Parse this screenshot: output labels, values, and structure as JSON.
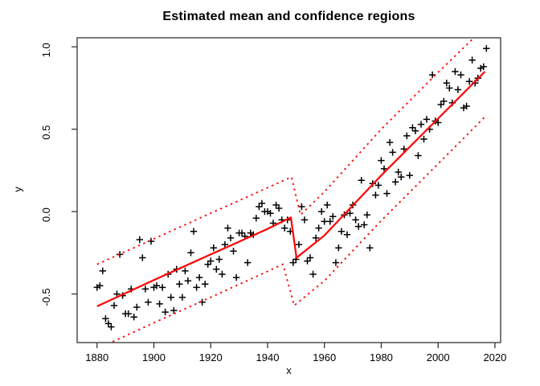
{
  "chart_data": {
    "type": "scatter",
    "title": "Estimated mean and confidence regions",
    "xlabel": "x",
    "ylabel": "y",
    "xlim": [
      1873,
      2022
    ],
    "ylim": [
      -0.795,
      1.055
    ],
    "x_ticks": [
      1880,
      1900,
      1920,
      1940,
      1960,
      1980,
      2000,
      2020
    ],
    "y_ticks": [
      -0.5,
      0.0,
      0.5,
      1.0
    ],
    "y_tick_labels": [
      "-0.5",
      "0.0",
      "0.5",
      "1.0"
    ],
    "grid": false,
    "legend": "none",
    "marker": "plus",
    "colors": {
      "points": "#000000",
      "mean_line": "#ff0000",
      "band": "#ff0000",
      "axis": "#333333"
    },
    "series": [
      {
        "name": "observations",
        "style": "plus-marker",
        "points": [
          [
            1880,
            -0.46
          ],
          [
            1881,
            -0.45
          ],
          [
            1882,
            -0.36
          ],
          [
            1883,
            -0.65
          ],
          [
            1884,
            -0.68
          ],
          [
            1885,
            -0.7
          ],
          [
            1886,
            -0.57
          ],
          [
            1887,
            -0.5
          ],
          [
            1888,
            -0.26
          ],
          [
            1889,
            -0.51
          ],
          [
            1890,
            -0.62
          ],
          [
            1891,
            -0.62
          ],
          [
            1892,
            -0.47
          ],
          [
            1893,
            -0.64
          ],
          [
            1894,
            -0.58
          ],
          [
            1895,
            -0.17
          ],
          [
            1896,
            -0.28
          ],
          [
            1897,
            -0.47
          ],
          [
            1898,
            -0.55
          ],
          [
            1899,
            -0.18
          ],
          [
            1900,
            -0.46
          ],
          [
            1901,
            -0.45
          ],
          [
            1902,
            -0.56
          ],
          [
            1903,
            -0.46
          ],
          [
            1904,
            -0.61
          ],
          [
            1905,
            -0.38
          ],
          [
            1906,
            -0.52
          ],
          [
            1907,
            -0.6
          ],
          [
            1908,
            -0.35
          ],
          [
            1909,
            -0.44
          ],
          [
            1910,
            -0.52
          ],
          [
            1911,
            -0.36
          ],
          [
            1912,
            -0.42
          ],
          [
            1913,
            -0.25
          ],
          [
            1914,
            -0.12
          ],
          [
            1915,
            -0.46
          ],
          [
            1916,
            -0.4
          ],
          [
            1917,
            -0.55
          ],
          [
            1918,
            -0.44
          ],
          [
            1919,
            -0.32
          ],
          [
            1920,
            -0.3
          ],
          [
            1921,
            -0.22
          ],
          [
            1922,
            -0.35
          ],
          [
            1923,
            -0.29
          ],
          [
            1924,
            -0.38
          ],
          [
            1925,
            -0.2
          ],
          [
            1926,
            -0.1
          ],
          [
            1927,
            -0.16
          ],
          [
            1928,
            -0.24
          ],
          [
            1929,
            -0.4
          ],
          [
            1930,
            -0.13
          ],
          [
            1931,
            -0.13
          ],
          [
            1932,
            -0.15
          ],
          [
            1933,
            -0.31
          ],
          [
            1934,
            -0.13
          ],
          [
            1935,
            -0.14
          ],
          [
            1936,
            -0.04
          ],
          [
            1937,
            0.03
          ],
          [
            1938,
            0.05
          ],
          [
            1939,
            0.0
          ],
          [
            1940,
            0.0
          ],
          [
            1941,
            -0.01
          ],
          [
            1942,
            -0.07
          ],
          [
            1943,
            0.04
          ],
          [
            1944,
            0.02
          ],
          [
            1945,
            -0.05
          ],
          [
            1946,
            -0.1
          ],
          [
            1947,
            -0.05
          ],
          [
            1948,
            -0.12
          ],
          [
            1949,
            -0.31
          ],
          [
            1950,
            -0.29
          ],
          [
            1951,
            -0.2
          ],
          [
            1952,
            0.03
          ],
          [
            1953,
            -0.05
          ],
          [
            1954,
            -0.3
          ],
          [
            1955,
            -0.28
          ],
          [
            1956,
            -0.38
          ],
          [
            1957,
            -0.16
          ],
          [
            1958,
            -0.1
          ],
          [
            1959,
            0.0
          ],
          [
            1960,
            -0.06
          ],
          [
            1961,
            0.04
          ],
          [
            1962,
            -0.06
          ],
          [
            1963,
            -0.03
          ],
          [
            1964,
            -0.31
          ],
          [
            1965,
            -0.22
          ],
          [
            1966,
            -0.12
          ],
          [
            1967,
            -0.02
          ],
          [
            1968,
            -0.14
          ],
          [
            1969,
            -0.01
          ],
          [
            1970,
            0.04
          ],
          [
            1971,
            -0.05
          ],
          [
            1972,
            -0.09
          ],
          [
            1973,
            0.19
          ],
          [
            1974,
            -0.08
          ],
          [
            1975,
            -0.02
          ],
          [
            1976,
            -0.22
          ],
          [
            1977,
            0.17
          ],
          [
            1978,
            0.1
          ],
          [
            1979,
            0.16
          ],
          [
            1980,
            0.31
          ],
          [
            1981,
            0.26
          ],
          [
            1982,
            0.11
          ],
          [
            1983,
            0.42
          ],
          [
            1984,
            0.36
          ],
          [
            1985,
            0.18
          ],
          [
            1986,
            0.24
          ],
          [
            1987,
            0.21
          ],
          [
            1988,
            0.38
          ],
          [
            1989,
            0.46
          ],
          [
            1990,
            0.22
          ],
          [
            1991,
            0.51
          ],
          [
            1992,
            0.49
          ],
          [
            1993,
            0.34
          ],
          [
            1994,
            0.53
          ],
          [
            1995,
            0.44
          ],
          [
            1996,
            0.56
          ],
          [
            1997,
            0.5
          ],
          [
            1998,
            0.83
          ],
          [
            1999,
            0.55
          ],
          [
            2000,
            0.54
          ],
          [
            2001,
            0.65
          ],
          [
            2002,
            0.67
          ],
          [
            2003,
            0.78
          ],
          [
            2004,
            0.75
          ],
          [
            2005,
            0.66
          ],
          [
            2006,
            0.85
          ],
          [
            2007,
            0.74
          ],
          [
            2008,
            0.83
          ],
          [
            2009,
            0.63
          ],
          [
            2010,
            0.64
          ],
          [
            2011,
            0.79
          ],
          [
            2012,
            0.92
          ],
          [
            2013,
            0.78
          ],
          [
            2014,
            0.81
          ],
          [
            2015,
            0.87
          ],
          [
            2016,
            0.88
          ],
          [
            2017,
            0.99
          ]
        ]
      },
      {
        "name": "estimated-mean",
        "style": "solid-line",
        "points": [
          [
            1880,
            -0.575
          ],
          [
            1900,
            -0.415
          ],
          [
            1920,
            -0.26
          ],
          [
            1940,
            -0.105
          ],
          [
            1948.2,
            -0.035
          ],
          [
            1950.2,
            -0.28
          ],
          [
            1960,
            -0.145
          ],
          [
            1980,
            0.22
          ],
          [
            2000,
            0.565
          ],
          [
            2016.5,
            0.85
          ]
        ]
      },
      {
        "name": "upper-confidence-limit",
        "style": "dotted-line",
        "points": [
          [
            1880,
            -0.32
          ],
          [
            1940,
            0.145
          ],
          [
            1948.4,
            0.21
          ],
          [
            1951.6,
            -0.02
          ],
          [
            1960,
            0.12
          ],
          [
            1980,
            0.5
          ],
          [
            2000,
            0.845
          ],
          [
            2012.3,
            1.05
          ]
        ]
      },
      {
        "name": "lower-confidence-limit",
        "style": "dotted-line",
        "points": [
          [
            1885.5,
            -0.79
          ],
          [
            1900,
            -0.675
          ],
          [
            1920,
            -0.52
          ],
          [
            1945.4,
            -0.32
          ],
          [
            1949.4,
            -0.57
          ],
          [
            1960,
            -0.42
          ],
          [
            1980,
            -0.055
          ],
          [
            2000,
            0.29
          ],
          [
            2016.5,
            0.575
          ]
        ]
      }
    ]
  }
}
